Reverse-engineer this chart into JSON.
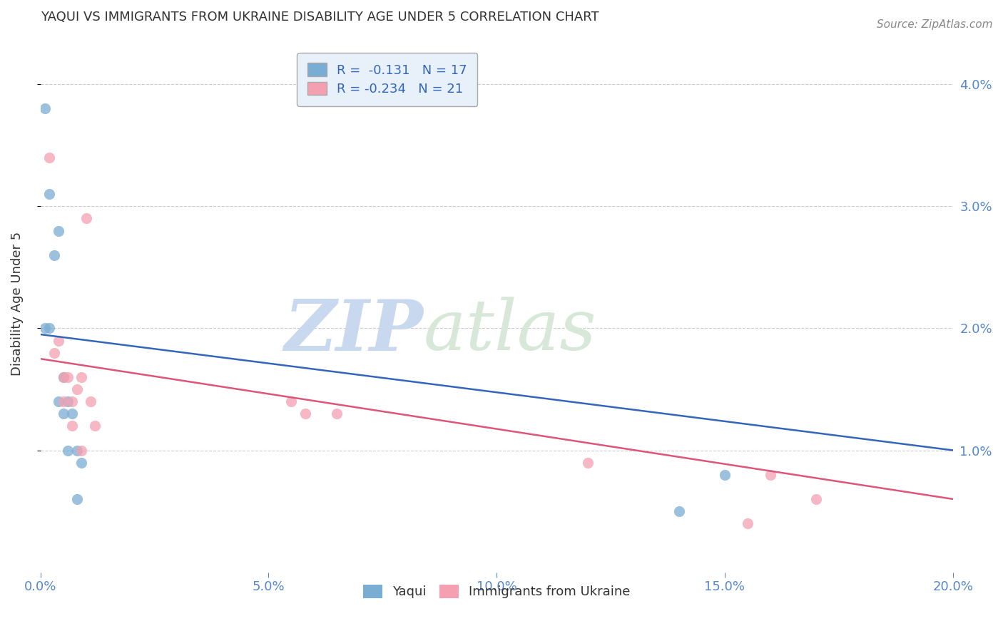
{
  "title": "YAQUI VS IMMIGRANTS FROM UKRAINE DISABILITY AGE UNDER 5 CORRELATION CHART",
  "source": "Source: ZipAtlas.com",
  "xlabel_ticks": [
    "0.0%",
    "5.0%",
    "10.0%",
    "15.0%",
    "20.0%"
  ],
  "xlabel_values": [
    0.0,
    0.05,
    0.1,
    0.15,
    0.2
  ],
  "ylabel": "Disability Age Under 5",
  "ylabel_ticks": [
    "1.0%",
    "2.0%",
    "3.0%",
    "4.0%"
  ],
  "ylabel_values": [
    0.01,
    0.02,
    0.03,
    0.04
  ],
  "xlim": [
    0.0,
    0.2
  ],
  "ylim": [
    0.0,
    0.044
  ],
  "blue_scatter": {
    "x": [
      0.001,
      0.002,
      0.003,
      0.004,
      0.004,
      0.005,
      0.005,
      0.006,
      0.006,
      0.007,
      0.008,
      0.008,
      0.009,
      0.001,
      0.002,
      0.15,
      0.14
    ],
    "y": [
      0.038,
      0.031,
      0.026,
      0.028,
      0.014,
      0.016,
      0.013,
      0.01,
      0.014,
      0.013,
      0.01,
      0.006,
      0.009,
      0.02,
      0.02,
      0.008,
      0.005
    ],
    "R": -0.131,
    "N": 17
  },
  "pink_scatter": {
    "x": [
      0.002,
      0.003,
      0.004,
      0.005,
      0.005,
      0.006,
      0.007,
      0.007,
      0.008,
      0.009,
      0.009,
      0.01,
      0.011,
      0.012,
      0.055,
      0.058,
      0.065,
      0.12,
      0.155,
      0.16,
      0.17
    ],
    "y": [
      0.034,
      0.018,
      0.019,
      0.016,
      0.014,
      0.016,
      0.014,
      0.012,
      0.015,
      0.01,
      0.016,
      0.029,
      0.014,
      0.012,
      0.014,
      0.013,
      0.013,
      0.009,
      0.004,
      0.008,
      0.006
    ],
    "R": -0.234,
    "N": 21
  },
  "blue_line": {
    "x": [
      0.0,
      0.2
    ],
    "y": [
      0.0195,
      0.01
    ]
  },
  "pink_line": {
    "x": [
      0.0,
      0.2
    ],
    "y": [
      0.0175,
      0.006
    ]
  },
  "blue_color": "#7aadd4",
  "pink_color": "#f4a0b0",
  "blue_line_color": "#3366bb",
  "pink_line_color": "#dd5577",
  "title_color": "#333333",
  "tick_color": "#5588cc",
  "grid_color": "#cccccc",
  "legend_box_color": "#e8f0fa",
  "legend_border_color": "#aaaaaa",
  "watermark_zip_color": "#c8d8ee",
  "watermark_atlas_color": "#d8e8d8",
  "scatter_size": 120,
  "background_color": "#ffffff"
}
